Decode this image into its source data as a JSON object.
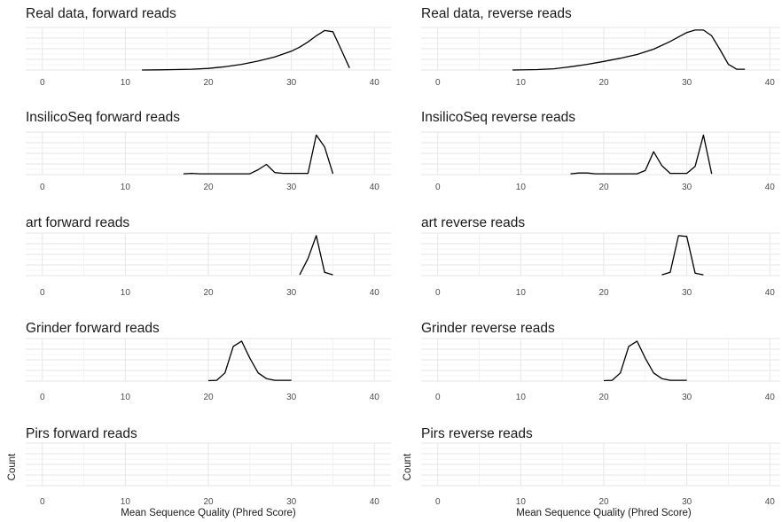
{
  "figure": {
    "xlabel": "Mean Sequence Quality (Phred Score)",
    "ylabel": "Count"
  },
  "chart_data": [
    {
      "type": "line",
      "title": "Real data, forward reads",
      "xlim": [
        -2,
        42
      ],
      "x_ticks": [
        0,
        10,
        20,
        30,
        40
      ],
      "x": [
        12,
        14,
        16,
        18,
        20,
        22,
        24,
        26,
        28,
        30,
        31,
        32,
        33,
        34,
        35,
        36,
        37
      ],
      "y": [
        0,
        0.005,
        0.01,
        0.02,
        0.04,
        0.08,
        0.14,
        0.22,
        0.32,
        0.46,
        0.56,
        0.69,
        0.84,
        0.97,
        0.94,
        0.5,
        0.05
      ]
    },
    {
      "type": "line",
      "title": "Real data, reverse reads",
      "xlim": [
        -2,
        42
      ],
      "x_ticks": [
        0,
        10,
        20,
        30,
        40
      ],
      "x": [
        9,
        12,
        14,
        16,
        18,
        20,
        22,
        24,
        26,
        28,
        29,
        30,
        31,
        32,
        33,
        34,
        35,
        36,
        37
      ],
      "y": [
        0,
        0.01,
        0.03,
        0.08,
        0.14,
        0.21,
        0.29,
        0.38,
        0.51,
        0.7,
        0.81,
        0.92,
        0.98,
        0.98,
        0.84,
        0.5,
        0.14,
        0.02,
        0.02
      ]
    },
    {
      "type": "line",
      "title": "InsilicoSeq forward reads",
      "xlim": [
        -2,
        42
      ],
      "x_ticks": [
        0,
        10,
        20,
        30,
        40
      ],
      "x": [
        17,
        18,
        19,
        20,
        21,
        22,
        23,
        24,
        25,
        26,
        27,
        28,
        29,
        30,
        31,
        32,
        33,
        34,
        35
      ],
      "y": [
        0.02,
        0.03,
        0.02,
        0.02,
        0.02,
        0.02,
        0.02,
        0.02,
        0.02,
        0.12,
        0.25,
        0.05,
        0.03,
        0.03,
        0.03,
        0.03,
        0.97,
        0.68,
        0.02
      ]
    },
    {
      "type": "line",
      "title": "InsilicoSeq reverse reads",
      "xlim": [
        -2,
        42
      ],
      "x_ticks": [
        0,
        10,
        20,
        30,
        40
      ],
      "x": [
        16,
        17,
        18,
        19,
        20,
        21,
        22,
        23,
        24,
        25,
        26,
        27,
        28,
        29,
        30,
        31,
        32,
        33
      ],
      "y": [
        0.02,
        0.04,
        0.04,
        0.02,
        0.02,
        0.02,
        0.02,
        0.02,
        0.02,
        0.1,
        0.56,
        0.22,
        0.03,
        0.03,
        0.03,
        0.2,
        0.97,
        0.02
      ]
    },
    {
      "type": "line",
      "title": "art forward reads",
      "xlim": [
        -2,
        42
      ],
      "x_ticks": [
        0,
        10,
        20,
        30,
        40
      ],
      "x": [
        31,
        32,
        33,
        34,
        35
      ],
      "y": [
        0.02,
        0.42,
        0.98,
        0.08,
        0.02
      ]
    },
    {
      "type": "line",
      "title": "art reverse reads",
      "xlim": [
        -2,
        42
      ],
      "x_ticks": [
        0,
        10,
        20,
        30,
        40
      ],
      "x": [
        27,
        28,
        29,
        30,
        31,
        32
      ],
      "y": [
        0.02,
        0.08,
        0.98,
        0.96,
        0.06,
        0.02
      ]
    },
    {
      "type": "line",
      "title": "Grinder forward reads",
      "xlim": [
        -2,
        42
      ],
      "x_ticks": [
        0,
        10,
        20,
        30,
        40
      ],
      "x": [
        20,
        21,
        22,
        23,
        24,
        25,
        26,
        27,
        28,
        29,
        30
      ],
      "y": [
        0.01,
        0.02,
        0.2,
        0.85,
        0.98,
        0.56,
        0.2,
        0.06,
        0.02,
        0.02,
        0.02
      ]
    },
    {
      "type": "line",
      "title": "Grinder reverse reads",
      "xlim": [
        -2,
        42
      ],
      "x_ticks": [
        0,
        10,
        20,
        30,
        40
      ],
      "x": [
        20,
        21,
        22,
        23,
        24,
        25,
        26,
        27,
        28,
        29,
        30
      ],
      "y": [
        0.01,
        0.02,
        0.2,
        0.85,
        0.98,
        0.56,
        0.2,
        0.06,
        0.02,
        0.02,
        0.02
      ]
    },
    {
      "type": "line",
      "title": "Pirs forward reads",
      "xlim": [
        -2,
        42
      ],
      "x_ticks": [
        0,
        10,
        20,
        30,
        40
      ],
      "x": [],
      "y": []
    },
    {
      "type": "line",
      "title": "Pirs reverse reads",
      "xlim": [
        -2,
        42
      ],
      "x_ticks": [
        0,
        10,
        20,
        30,
        40
      ],
      "x": [],
      "y": []
    }
  ]
}
